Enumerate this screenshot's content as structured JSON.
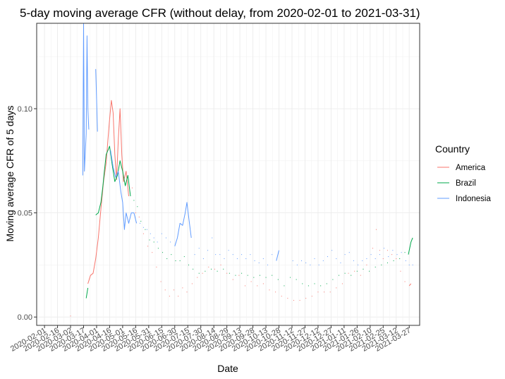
{
  "chart_data": {
    "type": "line",
    "title": "5-day moving average CFR (without delay, from 2020-02-01 to 2021-03-31)",
    "xlabel": "Date",
    "ylabel": "Moving average CFR of 5 days",
    "xlim": [
      "2020-01-23",
      "2021-04-08"
    ],
    "ylim": [
      -0.004,
      0.141
    ],
    "y_ticks": [
      0.0,
      0.05,
      0.1
    ],
    "y_tick_labels": [
      "0.00",
      "0.05",
      "0.10"
    ],
    "x_tick_labels": [
      "2020-02-01",
      "2020-02-16",
      "2020-03-02",
      "2020-03-17",
      "2020-04-01",
      "2020-04-16",
      "2020-05-01",
      "2020-05-16",
      "2020-05-31",
      "2020-06-15",
      "2020-06-30",
      "2020-07-15",
      "2020-07-30",
      "2020-08-14",
      "2020-08-29",
      "2020-09-13",
      "2020-09-28",
      "2020-10-13",
      "2020-10-28",
      "2020-11-12",
      "2020-11-27",
      "2020-12-12",
      "2020-12-27",
      "2021-01-11",
      "2021-01-26",
      "2021-02-10",
      "2021-02-25",
      "2021-03-12",
      "2021-03-27"
    ],
    "grid": true,
    "legend": {
      "title": "Country",
      "position": "right"
    },
    "series": [
      {
        "name": "America",
        "color": "#F8766D",
        "points": [
          [
            "2020-03-02",
            0.0005
          ],
          [
            "2020-03-22",
            0.016
          ],
          [
            "2020-03-25",
            0.02
          ],
          [
            "2020-03-28",
            0.021
          ],
          [
            "2020-03-31",
            0.028
          ],
          [
            "2020-04-03",
            0.038
          ],
          [
            "2020-04-06",
            0.052
          ],
          [
            "2020-04-09",
            0.065
          ],
          [
            "2020-04-12",
            0.074
          ],
          [
            "2020-04-14",
            0.085
          ],
          [
            "2020-04-16",
            0.095
          ],
          [
            "2020-04-18",
            0.104
          ],
          [
            "2020-04-20",
            0.098
          ],
          [
            "2020-04-22",
            0.078
          ],
          [
            "2020-04-24",
            0.066
          ],
          [
            "2020-04-26",
            0.085
          ],
          [
            "2020-04-28",
            0.1
          ],
          [
            "2020-04-30",
            0.078
          ],
          [
            "2020-05-02",
            0.065
          ],
          [
            "2020-05-05",
            0.07
          ],
          [
            "2020-05-08",
            0.058
          ],
          [
            "2020-05-12",
            0.062
          ],
          [
            "2020-05-16",
            0.05
          ],
          [
            "2020-05-20",
            0.048
          ],
          [
            "2020-05-25",
            0.04
          ],
          [
            "2020-05-30",
            0.034
          ],
          [
            "2020-06-04",
            0.031
          ],
          [
            "2020-06-09",
            0.024
          ],
          [
            "2020-06-14",
            0.017
          ],
          [
            "2020-06-19",
            0.013
          ],
          [
            "2020-06-24",
            0.01
          ],
          [
            "2020-06-29",
            0.013
          ],
          [
            "2020-07-04",
            0.01
          ],
          [
            "2020-07-09",
            0.014
          ],
          [
            "2020-07-14",
            0.012
          ],
          [
            "2020-07-20",
            0.016
          ],
          [
            "2020-07-26",
            0.019
          ],
          [
            "2020-08-01",
            0.021
          ],
          [
            "2020-08-08",
            0.024
          ],
          [
            "2020-08-15",
            0.023
          ],
          [
            "2020-08-22",
            0.025
          ],
          [
            "2020-08-29",
            0.021
          ],
          [
            "2020-09-05",
            0.018
          ],
          [
            "2020-09-12",
            0.02
          ],
          [
            "2020-09-19",
            0.015
          ],
          [
            "2020-09-26",
            0.017
          ],
          [
            "2020-10-03",
            0.015
          ],
          [
            "2020-10-10",
            0.016
          ],
          [
            "2020-10-17",
            0.013
          ],
          [
            "2020-10-24",
            0.012
          ],
          [
            "2020-10-31",
            0.01
          ],
          [
            "2020-11-07",
            0.009
          ],
          [
            "2020-11-14",
            0.008
          ],
          [
            "2020-11-21",
            0.008
          ],
          [
            "2020-11-28",
            0.009
          ],
          [
            "2020-12-05",
            0.01
          ],
          [
            "2020-12-12",
            0.012
          ],
          [
            "2020-12-19",
            0.012
          ],
          [
            "2020-12-26",
            0.012
          ],
          [
            "2021-01-02",
            0.014
          ],
          [
            "2021-01-09",
            0.016
          ],
          [
            "2021-01-16",
            0.021
          ],
          [
            "2021-01-23",
            0.022
          ],
          [
            "2021-01-30",
            0.02
          ],
          [
            "2021-02-06",
            0.025
          ],
          [
            "2021-02-13",
            0.033
          ],
          [
            "2021-02-17",
            0.042
          ],
          [
            "2021-02-21",
            0.032
          ],
          [
            "2021-02-25",
            0.028
          ],
          [
            "2021-03-02",
            0.032
          ],
          [
            "2021-03-07",
            0.03
          ],
          [
            "2021-03-12",
            0.028
          ],
          [
            "2021-03-17",
            0.022
          ],
          [
            "2021-03-22",
            0.017
          ],
          [
            "2021-03-27",
            0.015
          ],
          [
            "2021-03-29",
            0.016
          ]
        ]
      },
      {
        "name": "Brazil",
        "color": "#00A84B",
        "points": [
          [
            "2020-03-20",
            0.009
          ],
          [
            "2020-03-22",
            0.014
          ],
          [
            "2020-03-31",
            0.049
          ],
          [
            "2020-04-03",
            0.05
          ],
          [
            "2020-04-06",
            0.055
          ],
          [
            "2020-04-08",
            0.062
          ],
          [
            "2020-04-10",
            0.07
          ],
          [
            "2020-04-12",
            0.078
          ],
          [
            "2020-04-14",
            0.08
          ],
          [
            "2020-04-16",
            0.082
          ],
          [
            "2020-04-19",
            0.073
          ],
          [
            "2020-04-22",
            0.065
          ],
          [
            "2020-04-25",
            0.068
          ],
          [
            "2020-04-28",
            0.075
          ],
          [
            "2020-05-01",
            0.07
          ],
          [
            "2020-05-04",
            0.063
          ],
          [
            "2020-05-07",
            0.068
          ],
          [
            "2020-05-10",
            0.058
          ],
          [
            "2020-05-14",
            0.056
          ],
          [
            "2020-05-18",
            0.053
          ],
          [
            "2020-05-22",
            0.046
          ],
          [
            "2020-05-27",
            0.042
          ],
          [
            "2020-06-01",
            0.037
          ],
          [
            "2020-06-06",
            0.036
          ],
          [
            "2020-06-11",
            0.033
          ],
          [
            "2020-06-16",
            0.031
          ],
          [
            "2020-06-21",
            0.028
          ],
          [
            "2020-06-26",
            0.03
          ],
          [
            "2020-07-01",
            0.027
          ],
          [
            "2020-07-06",
            0.027
          ],
          [
            "2020-07-11",
            0.029
          ],
          [
            "2020-07-16",
            0.025
          ],
          [
            "2020-07-21",
            0.023
          ],
          [
            "2020-07-28",
            0.021
          ],
          [
            "2020-08-04",
            0.022
          ],
          [
            "2020-08-11",
            0.023
          ],
          [
            "2020-08-18",
            0.022
          ],
          [
            "2020-08-25",
            0.023
          ],
          [
            "2020-09-01",
            0.021
          ],
          [
            "2020-09-08",
            0.02
          ],
          [
            "2020-09-15",
            0.021
          ],
          [
            "2020-09-22",
            0.02
          ],
          [
            "2020-09-29",
            0.019
          ],
          [
            "2020-10-06",
            0.02
          ],
          [
            "2020-10-13",
            0.019
          ],
          [
            "2020-10-20",
            0.02
          ],
          [
            "2020-10-27",
            0.018
          ],
          [
            "2020-11-03",
            0.015
          ],
          [
            "2020-11-10",
            0.019
          ],
          [
            "2020-11-17",
            0.018
          ],
          [
            "2020-11-24",
            0.016
          ],
          [
            "2020-12-01",
            0.015
          ],
          [
            "2020-12-08",
            0.016
          ],
          [
            "2020-12-15",
            0.015
          ],
          [
            "2020-12-22",
            0.016
          ],
          [
            "2020-12-29",
            0.018
          ],
          [
            "2021-01-05",
            0.02
          ],
          [
            "2021-01-12",
            0.021
          ],
          [
            "2021-01-19",
            0.02
          ],
          [
            "2021-01-26",
            0.022
          ],
          [
            "2021-02-02",
            0.023
          ],
          [
            "2021-02-09",
            0.022
          ],
          [
            "2021-02-16",
            0.024
          ],
          [
            "2021-02-23",
            0.025
          ],
          [
            "2021-03-02",
            0.026
          ],
          [
            "2021-03-09",
            0.027
          ],
          [
            "2021-03-16",
            0.028
          ],
          [
            "2021-03-22",
            0.031
          ],
          [
            "2021-03-26",
            0.03
          ],
          [
            "2021-03-29",
            0.036
          ],
          [
            "2021-03-31",
            0.038
          ]
        ]
      },
      {
        "name": "Indonesia",
        "color": "#619CFF",
        "points": [
          [
            "2020-03-16",
            0.068
          ],
          [
            "2020-03-17",
            0.144
          ],
          [
            "2020-03-18",
            0.07
          ],
          [
            "2020-03-20",
            0.088
          ],
          [
            "2020-03-21",
            0.135
          ],
          [
            "2020-03-22",
            0.1
          ],
          [
            "2020-03-23",
            0.09
          ],
          [
            "2020-03-31",
            0.119
          ],
          [
            "2020-04-01",
            0.104
          ],
          [
            "2020-04-02",
            0.089
          ],
          [
            "2020-04-17",
            0.08
          ],
          [
            "2020-04-20",
            0.072
          ],
          [
            "2020-04-23",
            0.067
          ],
          [
            "2020-04-26",
            0.07
          ],
          [
            "2020-04-29",
            0.06
          ],
          [
            "2020-05-01",
            0.055
          ],
          [
            "2020-05-03",
            0.042
          ],
          [
            "2020-05-05",
            0.05
          ],
          [
            "2020-05-08",
            0.045
          ],
          [
            "2020-05-11",
            0.05
          ],
          [
            "2020-05-14",
            0.05
          ],
          [
            "2020-05-17",
            0.045
          ],
          [
            "2020-05-21",
            0.045
          ],
          [
            "2020-05-25",
            0.043
          ],
          [
            "2020-05-29",
            0.042
          ],
          [
            "2020-06-02",
            0.04
          ],
          [
            "2020-06-06",
            0.038
          ],
          [
            "2020-06-10",
            0.036
          ],
          [
            "2020-06-15",
            0.04
          ],
          [
            "2020-06-20",
            0.038
          ],
          [
            "2020-06-25",
            0.036
          ],
          [
            "2020-06-30",
            0.034
          ],
          [
            "2020-07-03",
            0.038
          ],
          [
            "2020-07-06",
            0.045
          ],
          [
            "2020-07-09",
            0.044
          ],
          [
            "2020-07-12",
            0.05
          ],
          [
            "2020-07-14",
            0.055
          ],
          [
            "2020-07-16",
            0.048
          ],
          [
            "2020-07-19",
            0.038
          ],
          [
            "2020-07-23",
            0.03
          ],
          [
            "2020-07-28",
            0.033
          ],
          [
            "2020-08-02",
            0.028
          ],
          [
            "2020-08-07",
            0.032
          ],
          [
            "2020-08-12",
            0.038
          ],
          [
            "2020-08-16",
            0.03
          ],
          [
            "2020-08-21",
            0.03
          ],
          [
            "2020-08-26",
            0.028
          ],
          [
            "2020-08-31",
            0.032
          ],
          [
            "2020-09-05",
            0.03
          ],
          [
            "2020-09-10",
            0.028
          ],
          [
            "2020-09-15",
            0.03
          ],
          [
            "2020-09-20",
            0.028
          ],
          [
            "2020-09-25",
            0.03
          ],
          [
            "2020-09-30",
            0.027
          ],
          [
            "2020-10-05",
            0.026
          ],
          [
            "2020-10-10",
            0.028
          ],
          [
            "2020-10-15",
            0.025
          ],
          [
            "2020-10-20",
            0.03
          ],
          [
            "2020-10-25",
            0.027
          ],
          [
            "2020-10-28",
            0.032
          ],
          [
            "2020-11-13",
            0.027
          ],
          [
            "2020-11-18",
            0.025
          ],
          [
            "2020-11-23",
            0.027
          ],
          [
            "2020-11-28",
            0.026
          ],
          [
            "2020-12-03",
            0.025
          ],
          [
            "2020-12-08",
            0.028
          ],
          [
            "2020-12-13",
            0.025
          ],
          [
            "2020-12-18",
            0.027
          ],
          [
            "2020-12-23",
            0.029
          ],
          [
            "2020-12-28",
            0.032
          ],
          [
            "2021-01-02",
            0.028
          ],
          [
            "2021-01-07",
            0.026
          ],
          [
            "2021-01-12",
            0.03
          ],
          [
            "2021-01-17",
            0.031
          ],
          [
            "2021-01-22",
            0.027
          ],
          [
            "2021-01-27",
            0.025
          ],
          [
            "2021-02-01",
            0.027
          ],
          [
            "2021-02-06",
            0.028
          ],
          [
            "2021-02-11",
            0.03
          ],
          [
            "2021-02-16",
            0.028
          ],
          [
            "2021-02-21",
            0.03
          ],
          [
            "2021-02-26",
            0.033
          ],
          [
            "2021-03-03",
            0.029
          ],
          [
            "2021-03-08",
            0.032
          ],
          [
            "2021-03-13",
            0.03
          ],
          [
            "2021-03-18",
            0.031
          ],
          [
            "2021-03-23",
            0.027
          ],
          [
            "2021-03-27",
            0.025
          ],
          [
            "2021-03-31",
            0.025
          ]
        ]
      }
    ]
  }
}
